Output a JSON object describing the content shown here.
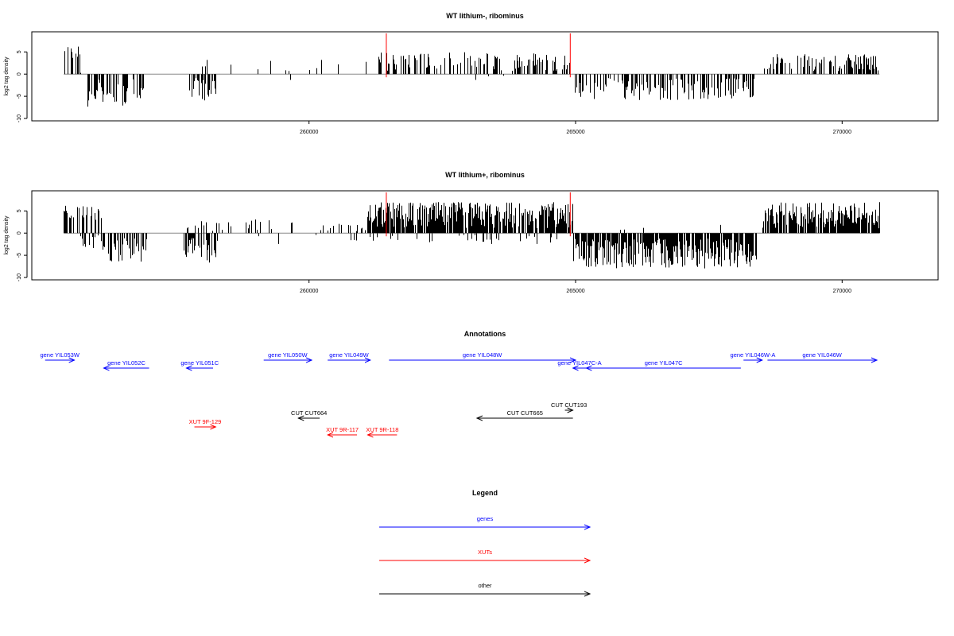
{
  "colors": {
    "gene": "#0000ff",
    "xut": "#ff0000",
    "other": "#000000",
    "marker": "#ff0000"
  },
  "x_axis": {
    "ticks": [
      260000,
      265000,
      270000
    ]
  },
  "chart_data": [
    {
      "type": "bar",
      "title": "WT lithium-, ribominus",
      "ylabel": "log2 tag density",
      "ylim": [
        -10,
        9
      ],
      "yticks": [
        -10,
        -5,
        0,
        5
      ],
      "xlim": [
        254800,
        271800
      ],
      "markers_x": [
        261450,
        264900
      ],
      "segments": [
        {
          "x0": 255400,
          "x1": 255700,
          "kind": "hi",
          "amp": 6.5,
          "density": 0.55
        },
        {
          "x0": 255700,
          "x1": 255750,
          "kind": "pos",
          "amp": 1,
          "density": 0.3
        },
        {
          "x0": 255850,
          "x1": 256900,
          "kind": "neg",
          "amp": 7.5,
          "density": 0.55
        },
        {
          "x0": 257750,
          "x1": 258250,
          "kind": "neg",
          "amp": 6,
          "density": 0.55
        },
        {
          "x0": 257800,
          "x1": 258100,
          "kind": "pos",
          "amp": 3.5,
          "density": 0.2
        },
        {
          "x0": 258300,
          "x1": 259800,
          "kind": "pos",
          "amp": 3,
          "density": 0.05
        },
        {
          "x0": 259300,
          "x1": 259900,
          "kind": "neg",
          "amp": 1.5,
          "density": 0.03
        },
        {
          "x0": 259900,
          "x1": 261200,
          "kind": "pos",
          "amp": 3.5,
          "density": 0.05
        },
        {
          "x0": 261200,
          "x1": 264950,
          "kind": "pos",
          "amp": 5,
          "density": 0.4
        },
        {
          "x0": 262500,
          "x1": 264600,
          "kind": "neg",
          "amp": 2,
          "density": 0.03
        },
        {
          "x0": 264950,
          "x1": 268400,
          "kind": "neg",
          "amp": 6,
          "density": 0.45
        },
        {
          "x0": 267500,
          "x1": 268100,
          "kind": "pos",
          "amp": 2,
          "density": 0.03
        },
        {
          "x0": 268500,
          "x1": 270700,
          "kind": "pos",
          "amp": 4.5,
          "density": 0.45
        }
      ]
    },
    {
      "type": "bar",
      "title": "WT lithium+, ribominus",
      "ylabel": "log2 tag density",
      "ylim": [
        -10,
        9
      ],
      "yticks": [
        -10,
        -5,
        0,
        5
      ],
      "xlim": [
        254800,
        271800
      ],
      "markers_x": [
        261450,
        264900
      ],
      "segments": [
        {
          "x0": 255400,
          "x1": 256100,
          "kind": "hi",
          "amp": 6.5,
          "density": 0.55
        },
        {
          "x0": 255700,
          "x1": 256100,
          "kind": "neg",
          "amp": 3.5,
          "density": 0.3
        },
        {
          "x0": 256100,
          "x1": 256950,
          "kind": "neg",
          "amp": 6.5,
          "density": 0.6
        },
        {
          "x0": 257650,
          "x1": 258300,
          "kind": "neg",
          "amp": 7,
          "density": 0.65
        },
        {
          "x0": 257650,
          "x1": 258400,
          "kind": "pos",
          "amp": 3,
          "density": 0.3
        },
        {
          "x0": 258400,
          "x1": 259700,
          "kind": "pos",
          "amp": 3.5,
          "density": 0.15
        },
        {
          "x0": 258600,
          "x1": 259700,
          "kind": "neg",
          "amp": 2.5,
          "density": 0.06
        },
        {
          "x0": 260200,
          "x1": 261100,
          "kind": "pos",
          "amp": 3,
          "density": 0.25
        },
        {
          "x0": 260000,
          "x1": 261100,
          "kind": "neg",
          "amp": 2,
          "density": 0.06
        },
        {
          "x0": 261100,
          "x1": 264950,
          "kind": "pos",
          "amp": 7,
          "density": 0.85
        },
        {
          "x0": 261100,
          "x1": 264950,
          "kind": "neg",
          "amp": 2.5,
          "density": 0.12
        },
        {
          "x0": 264950,
          "x1": 268400,
          "kind": "neg",
          "amp": 8,
          "density": 0.85
        },
        {
          "x0": 265500,
          "x1": 268300,
          "kind": "pos",
          "amp": 2,
          "density": 0.03
        },
        {
          "x0": 268500,
          "x1": 270700,
          "kind": "pos",
          "amp": 7,
          "density": 0.85
        }
      ]
    }
  ],
  "annotations": {
    "title": "Annotations",
    "items": [
      {
        "label": "gene YIL053W",
        "type": "gene",
        "dir": "right",
        "x0": 255050,
        "x1": 255600,
        "row": 0
      },
      {
        "label": "gene YIL052C",
        "type": "gene",
        "dir": "left",
        "x0": 256150,
        "x1": 257000,
        "row": 1
      },
      {
        "label": "gene YIL051C",
        "type": "gene",
        "dir": "left",
        "x0": 257700,
        "x1": 258200,
        "row": 1
      },
      {
        "label": "gene YIL050W",
        "type": "gene",
        "dir": "right",
        "x0": 259150,
        "x1": 260050,
        "row": 0
      },
      {
        "label": "gene YIL049W",
        "type": "gene",
        "dir": "right",
        "x0": 260350,
        "x1": 261150,
        "row": 0
      },
      {
        "label": "gene YIL048W",
        "type": "gene",
        "dir": "right",
        "x0": 261500,
        "x1": 265000,
        "row": 0
      },
      {
        "label": "gene YIL047C-A",
        "type": "gene",
        "dir": "left",
        "x0": 264950,
        "x1": 265200,
        "row": 1
      },
      {
        "label": "gene YIL047C",
        "type": "gene",
        "dir": "left",
        "x0": 265200,
        "x1": 268100,
        "row": 1
      },
      {
        "label": "gene YIL046W-A",
        "type": "gene",
        "dir": "right",
        "x0": 268150,
        "x1": 268500,
        "row": 0
      },
      {
        "label": "gene YIL046W",
        "type": "gene",
        "dir": "right",
        "x0": 268600,
        "x1": 270650,
        "row": 0
      },
      {
        "label": "CUT CUT664",
        "type": "other",
        "dir": "left",
        "x0": 259800,
        "x1": 260200,
        "row": 3
      },
      {
        "label": "CUT CUT193",
        "type": "other",
        "dir": "right",
        "x0": 264800,
        "x1": 264950,
        "row": 2
      },
      {
        "label": "CUT CUT665",
        "type": "other",
        "dir": "left",
        "x0": 263150,
        "x1": 264950,
        "row": 3
      },
      {
        "label": "XUT 9F-129",
        "type": "xut",
        "dir": "right",
        "x0": 257850,
        "x1": 258250,
        "row": 4
      },
      {
        "label": "XUT 9R-117",
        "type": "xut",
        "dir": "left",
        "x0": 260350,
        "x1": 260900,
        "row": 5
      },
      {
        "label": "XUT 9R-118",
        "type": "xut",
        "dir": "left",
        "x0": 261100,
        "x1": 261650,
        "row": 5
      }
    ]
  },
  "legend": {
    "title": "Legend",
    "entries": [
      {
        "label": "genes",
        "type": "gene"
      },
      {
        "label": "XUTs",
        "type": "xut"
      },
      {
        "label": "other",
        "type": "other"
      }
    ]
  }
}
